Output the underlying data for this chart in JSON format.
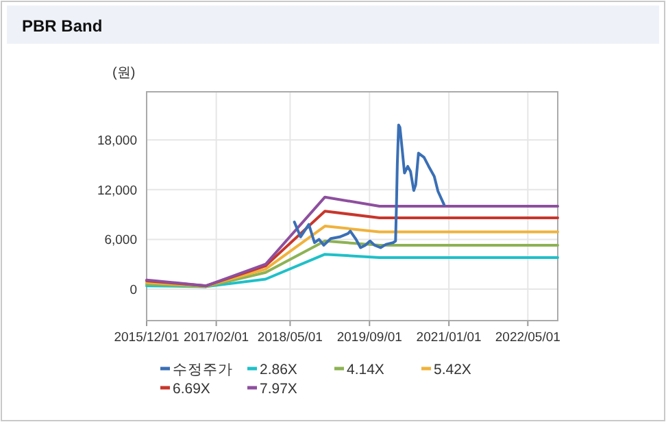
{
  "chart_data": {
    "type": "line",
    "title": "PBR Band",
    "ylabel": "(원)",
    "xlim": [
      "2015-12-01",
      "2022-11-01"
    ],
    "xticks": [
      {
        "value": "2015-12-01",
        "label": "2015/12/01"
      },
      {
        "value": "2017-02-01",
        "label": "2017/02/01"
      },
      {
        "value": "2018-05-01",
        "label": "2018/05/01"
      },
      {
        "value": "2019-09-01",
        "label": "2019/09/01"
      },
      {
        "value": "2021-01-01",
        "label": "2021/01/01"
      },
      {
        "value": "2022-05-01",
        "label": "2022/05/01"
      }
    ],
    "ylim": [
      -3800,
      23800
    ],
    "yticks": [
      0,
      {
        "value": 6000,
        "label": "6,000"
      },
      {
        "value": 12000,
        "label": "12,000"
      },
      {
        "value": 18000,
        "label": "18,000"
      }
    ],
    "grid": true,
    "legend": "bottom",
    "marker": "none",
    "line_style": "solid",
    "series": [
      {
        "name": "수정주가",
        "color": "#3a6fb5",
        "x": [
          "2018-05-27",
          "2018-07-04",
          "2018-08-24",
          "2018-09-28",
          "2018-10-26",
          "2018-11-24",
          "2019-01-06",
          "2019-03-02",
          "2019-04-22",
          "2019-05-06",
          "2019-06-10",
          "2019-07-08",
          "2019-08-06",
          "2019-09-04",
          "2019-10-02",
          "2019-11-08",
          "2019-12-12",
          "2020-01-24",
          "2020-02-08",
          "2020-02-14",
          "2020-02-19",
          "2020-02-27",
          "2020-03-06",
          "2020-03-20",
          "2020-04-03",
          "2020-04-23",
          "2020-05-10",
          "2020-05-30",
          "2020-06-11",
          "2020-06-28",
          "2020-08-01",
          "2020-08-30",
          "2020-10-03",
          "2020-10-26",
          "2020-12-02"
        ],
        "values": [
          8100,
          6300,
          7800,
          5600,
          6000,
          5300,
          6100,
          6300,
          6700,
          7000,
          6000,
          5000,
          5300,
          5800,
          5300,
          5000,
          5400,
          5600,
          5800,
          10400,
          15100,
          19800,
          19500,
          16800,
          14000,
          14800,
          14200,
          11900,
          12600,
          16400,
          15900,
          14800,
          13600,
          11800,
          10200
        ]
      },
      {
        "name": "2.86X",
        "color": "#1fc0c8",
        "x": [
          "2015-12-01",
          "2016-12-01",
          "2017-12-01",
          "2018-12-01",
          "2019-11-01",
          "2022-11-01"
        ],
        "values": [
          400,
          300,
          1200,
          4200,
          3800,
          3800
        ]
      },
      {
        "name": "4.14X",
        "color": "#8db254",
        "x": [
          "2015-12-01",
          "2016-12-01",
          "2017-12-01",
          "2018-12-01",
          "2019-11-01",
          "2022-11-01"
        ],
        "values": [
          600,
          300,
          2000,
          5800,
          5300,
          5300
        ]
      },
      {
        "name": "5.42X",
        "color": "#f0b23c",
        "x": [
          "2015-12-01",
          "2016-12-01",
          "2017-12-01",
          "2018-12-01",
          "2019-11-01",
          "2022-11-01"
        ],
        "values": [
          800,
          400,
          2400,
          7600,
          6900,
          6900
        ]
      },
      {
        "name": "6.69X",
        "color": "#c8362c",
        "x": [
          "2015-12-01",
          "2016-12-01",
          "2017-12-01",
          "2018-12-01",
          "2019-11-01",
          "2022-11-01"
        ],
        "values": [
          1000,
          400,
          2800,
          9400,
          8600,
          8600
        ]
      },
      {
        "name": "7.97X",
        "color": "#8e4f9e",
        "x": [
          "2015-12-01",
          "2016-12-01",
          "2017-12-01",
          "2018-12-01",
          "2019-11-01",
          "2022-11-01"
        ],
        "values": [
          1100,
          400,
          3000,
          11100,
          10000,
          10000
        ]
      }
    ]
  }
}
